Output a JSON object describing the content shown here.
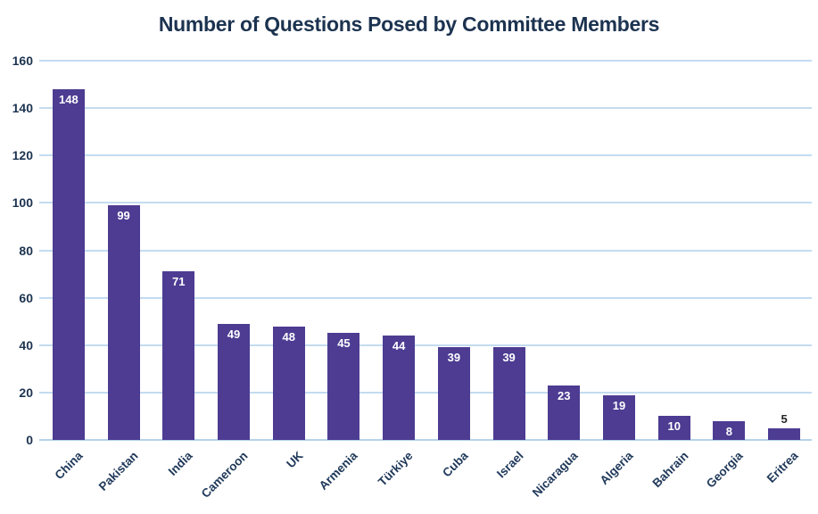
{
  "chart_data": {
    "type": "bar",
    "title": "Number of Questions Posed by Committee Members",
    "categories": [
      "China",
      "Pakistan",
      "India",
      "Cameroon",
      "UK",
      "Armenia",
      "Türkiye",
      "Cuba",
      "Israel",
      "Nicaragua",
      "Algeria",
      "Bahrain",
      "Georgia",
      "Eritrea"
    ],
    "values": [
      148,
      99,
      71,
      49,
      48,
      45,
      44,
      39,
      39,
      23,
      19,
      10,
      8,
      5
    ],
    "xlabel": "",
    "ylabel": "",
    "ylim": [
      0,
      160
    ],
    "yticks": [
      0,
      20,
      40,
      60,
      80,
      100,
      120,
      140,
      160
    ],
    "grid": true,
    "legend_position": "none",
    "value_labels": "shown on bars, white inside bar when bar is tall enough, dark above bar otherwise",
    "x_label_rotation_deg": -45,
    "colors": {
      "bar": "#4d3c92",
      "title": "#1c3350",
      "axis_labels": "#20395a",
      "gridline": "#c3dcf1",
      "value_label_inside": "#ffffff",
      "value_label_outside": "#262626",
      "background": "#ffffff"
    }
  }
}
